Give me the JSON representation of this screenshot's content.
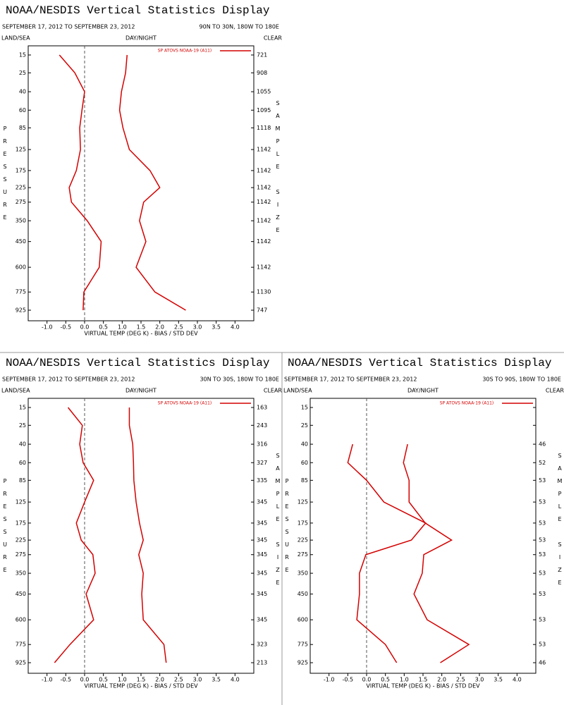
{
  "chart_data": [
    {
      "type": "line",
      "title": "NOAA/NESDIS Vertical Statistics Display",
      "date_range": "SEPTEMBER 17, 2012 TO SEPTEMBER 23, 2012",
      "region": "90N TO 30N, 180W TO 180E",
      "land_sea": "LAND/SEA",
      "day_night": "DAY/NIGHT",
      "clear": "CLEAR",
      "ylabel": "PRESSURE",
      "y2label": "SAMPLE SIZE",
      "xlabel": "VIRTUAL TEMP (DEG K) - BIAS / STD DEV",
      "categories": [
        15,
        25,
        40,
        60,
        85,
        125,
        175,
        225,
        275,
        350,
        450,
        600,
        775,
        925
      ],
      "yticks": [
        15,
        25,
        40,
        60,
        85,
        125,
        175,
        225,
        275,
        350,
        450,
        600,
        775,
        925
      ],
      "sample_size": [
        721,
        908,
        1055,
        1095,
        1118,
        1142,
        1142,
        1142,
        1142,
        1142,
        1142,
        1142,
        1130,
        747
      ],
      "series": [
        {
          "name": "SP ATOVS NOAA-19 (A11)",
          "color": "#d40000",
          "values": [
            -0.67,
            -0.26,
            0.0,
            -0.07,
            -0.13,
            -0.11,
            -0.22,
            -0.41,
            -0.35,
            0.07,
            0.44,
            0.39,
            -0.02,
            -0.04
          ],
          "std_dev": [
            1.13,
            1.09,
            0.98,
            0.93,
            1.02,
            1.19,
            1.74,
            2.0,
            1.57,
            1.46,
            1.63,
            1.37,
            1.87,
            2.69
          ]
        }
      ],
      "xlim": [
        -1.5,
        4.5
      ],
      "xticks": [
        {
          "value": -1.0,
          "label": "-1.0"
        },
        -0.5,
        {
          "value": 0,
          "label": "0.0"
        },
        0.5,
        {
          "value": 1,
          "label": "1.0"
        },
        1.5,
        {
          "value": 2,
          "label": "2.0"
        },
        2.5,
        {
          "value": 3,
          "label": "3.0"
        },
        3.5,
        {
          "value": 4,
          "label": "4.0"
        }
      ]
    },
    {
      "type": "line",
      "title": "NOAA/NESDIS Vertical Statistics Display",
      "date_range": "SEPTEMBER 17, 2012 TO SEPTEMBER 23, 2012",
      "region": "30N TO 30S, 180W TO 180E",
      "land_sea": "LAND/SEA",
      "day_night": "DAY/NIGHT",
      "clear": "CLEAR",
      "ylabel": "PRESSURE",
      "y2label": "SAMPLE SIZE",
      "xlabel": "VIRTUAL TEMP (DEG K) - BIAS / STD DEV",
      "categories": [
        15,
        25,
        40,
        60,
        85,
        125,
        175,
        225,
        275,
        350,
        450,
        600,
        775,
        925
      ],
      "yticks": [
        15,
        25,
        40,
        60,
        85,
        125,
        175,
        225,
        275,
        350,
        450,
        600,
        775,
        925
      ],
      "sample_size": [
        163,
        243,
        316,
        327,
        335,
        345,
        345,
        345,
        345,
        345,
        345,
        345,
        323,
        213
      ],
      "series": [
        {
          "name": "SP ATOVS NOAA-19 (A11)",
          "color": "#d40000",
          "values": [
            -0.44,
            -0.06,
            -0.13,
            -0.04,
            0.24,
            0.0,
            -0.22,
            -0.09,
            0.22,
            0.28,
            0.04,
            0.24,
            -0.39,
            -0.8
          ],
          "std_dev": [
            1.19,
            1.19,
            1.28,
            1.3,
            1.31,
            1.37,
            1.46,
            1.56,
            1.44,
            1.56,
            1.52,
            1.56,
            2.11,
            2.17
          ]
        }
      ],
      "xlim": [
        -1.5,
        4.5
      ],
      "xticks": [
        {
          "value": -1.0,
          "label": "-1.0"
        },
        -0.5,
        {
          "value": 0,
          "label": "0.0"
        },
        0.5,
        {
          "value": 1,
          "label": "1.0"
        },
        1.5,
        {
          "value": 2,
          "label": "2.0"
        },
        2.5,
        {
          "value": 3,
          "label": "3.0"
        },
        3.5,
        {
          "value": 4,
          "label": "4.0"
        }
      ]
    },
    {
      "type": "line",
      "title": "NOAA/NESDIS Vertical Statistics Display",
      "date_range": "SEPTEMBER 17, 2012 TO SEPTEMBER 23, 2012",
      "region": "30S TO 90S, 180W TO 180E",
      "land_sea": "LAND/SEA",
      "day_night": "DAY/NIGHT",
      "clear": "CLEAR",
      "ylabel": "PRESSURE",
      "y2label": "SAMPLE SIZE",
      "xlabel": "VIRTUAL TEMP (DEG K) - BIAS / STD DEV",
      "categories": [
        15,
        25,
        40,
        60,
        85,
        125,
        175,
        225,
        275,
        350,
        450,
        600,
        775,
        925
      ],
      "yticks": [
        15,
        25,
        40,
        60,
        85,
        125,
        175,
        225,
        275,
        350,
        450,
        600,
        775,
        925
      ],
      "sample_size": [
        null,
        null,
        46,
        52,
        53,
        53,
        53,
        53,
        53,
        53,
        53,
        53,
        53,
        46
      ],
      "series": [
        {
          "name": "SP ATOVS NOAA-19 (A11)",
          "color": "#d40000",
          "values": [
            null,
            null,
            -0.37,
            -0.5,
            0.0,
            0.46,
            1.57,
            1.19,
            -0.02,
            -0.19,
            -0.19,
            -0.26,
            0.5,
            0.8
          ],
          "std_dev": [
            null,
            null,
            1.09,
            0.98,
            1.13,
            1.13,
            1.56,
            2.26,
            1.52,
            1.48,
            1.26,
            1.61,
            2.72,
            1.96
          ]
        }
      ],
      "xlim": [
        -1.5,
        4.5
      ],
      "xticks": [
        {
          "value": -1.0,
          "label": "-1.0"
        },
        -0.5,
        {
          "value": 0,
          "label": "0.0"
        },
        0.5,
        {
          "value": 1,
          "label": "1.0"
        },
        1.5,
        {
          "value": 2,
          "label": "2.0"
        },
        2.5,
        {
          "value": 3,
          "label": "3.0"
        },
        3.5,
        {
          "value": 4,
          "label": "4.0"
        }
      ]
    }
  ]
}
